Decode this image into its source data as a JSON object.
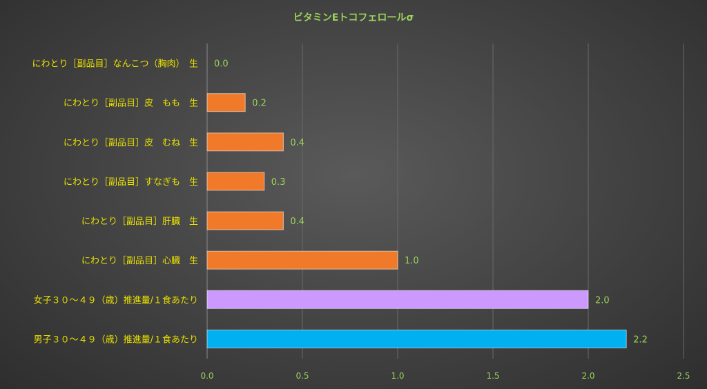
{
  "chart_data": {
    "type": "bar",
    "orientation": "horizontal",
    "title": "ビタミンEトコフェロールσ",
    "categories": [
      "にわとり［副品目］なんこつ（胸肉）　生",
      "にわとり［副品目］皮　もも　生",
      "にわとり［副品目］皮　むね　生",
      "にわとり［副品目］すなぎも　生",
      "にわとり［副品目］肝臓　生",
      "にわとり［副品目］心臓　生",
      "女子３０～４９（歳）推進量/１食あたり",
      "男子３０～４９（歳）推進量/１食あたり"
    ],
    "values": [
      0.0,
      0.2,
      0.4,
      0.3,
      0.4,
      1.0,
      2.0,
      2.2
    ],
    "value_labels": [
      "0.0",
      "0.2",
      "0.4",
      "0.3",
      "0.4",
      "1.0",
      "2.0",
      "2.2"
    ],
    "bar_colors": [
      "#f07a2a",
      "#f07a2a",
      "#f07a2a",
      "#f07a2a",
      "#f07a2a",
      "#f07a2a",
      "#cc99ff",
      "#00b0f0"
    ],
    "xlim": [
      0,
      2.5
    ],
    "xticks": [
      0,
      0.5,
      1.0,
      1.5,
      2.0,
      2.5
    ],
    "xtick_labels": [
      "0.0",
      "0.5",
      "1.0",
      "1.5",
      "2.0",
      "2.5"
    ],
    "grid": true,
    "xlabel": "",
    "ylabel": ""
  }
}
